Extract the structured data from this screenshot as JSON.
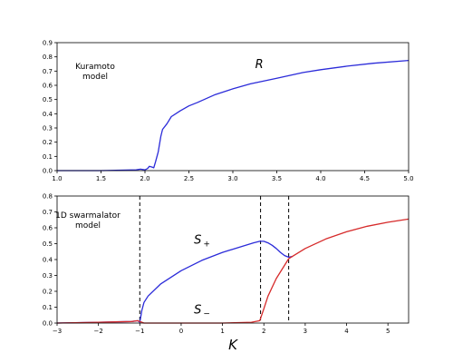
{
  "chart_data": [
    {
      "type": "line",
      "panel_label": [
        "Kuramoto",
        "model"
      ],
      "xlim": [
        1.0,
        5.0
      ],
      "ylim": [
        0.0,
        0.9
      ],
      "xticks": [
        "1.0",
        "1.5",
        "2.0",
        "2.5",
        "3.0",
        "3.5",
        "4.0",
        "4.5",
        "5.0"
      ],
      "yticks": [
        "0.0",
        "0.1",
        "0.2",
        "0.3",
        "0.4",
        "0.5",
        "0.6",
        "0.7",
        "0.8",
        "0.9"
      ],
      "xlabel": "",
      "ylabel": "",
      "grid": false,
      "series": [
        {
          "name": "R",
          "color": "#2b2bd9",
          "x": [
            1.0,
            1.5,
            1.9,
            1.95,
            2.0,
            2.03,
            2.05,
            2.08,
            2.1,
            2.12,
            2.15,
            2.18,
            2.2,
            2.25,
            2.3,
            2.4,
            2.5,
            2.6,
            2.8,
            3.0,
            3.2,
            3.5,
            3.8,
            4.0,
            4.3,
            4.6,
            5.0
          ],
          "y": [
            0.0,
            0.0,
            0.005,
            0.01,
            0.005,
            0.015,
            0.03,
            0.025,
            0.02,
            0.06,
            0.13,
            0.24,
            0.29,
            0.33,
            0.38,
            0.42,
            0.455,
            0.48,
            0.535,
            0.575,
            0.61,
            0.65,
            0.69,
            0.71,
            0.735,
            0.755,
            0.775
          ]
        }
      ],
      "annotations": [
        {
          "text": "R",
          "x": 3.3,
          "y": 0.72
        }
      ]
    },
    {
      "type": "line",
      "panel_label": [
        "1D swarmalator",
        "model"
      ],
      "xlim": [
        -3,
        5.5
      ],
      "ylim": [
        0.0,
        0.8
      ],
      "xticks": [
        "−3",
        "−2",
        "−1",
        "0",
        "1",
        "2",
        "3",
        "4",
        "5"
      ],
      "yticks": [
        "0.0",
        "0.1",
        "0.2",
        "0.3",
        "0.4",
        "0.5",
        "0.6",
        "0.7",
        "0.8"
      ],
      "xlabel": "K",
      "ylabel": "",
      "grid": false,
      "vlines": [
        -1.0,
        1.92,
        2.6
      ],
      "series": [
        {
          "name": "S+",
          "color": "#2b2bd9",
          "x": [
            -3.0,
            -2.0,
            -1.2,
            -1.05,
            -1.0,
            -0.95,
            -0.9,
            -0.8,
            -0.5,
            0.0,
            0.5,
            1.0,
            1.5,
            1.75,
            1.9,
            2.0,
            2.1,
            2.2,
            2.3,
            2.4,
            2.5,
            2.6,
            2.7
          ],
          "y": [
            0.0,
            0.005,
            0.01,
            0.015,
            0.005,
            0.08,
            0.13,
            0.17,
            0.245,
            0.33,
            0.395,
            0.445,
            0.485,
            0.505,
            0.515,
            0.515,
            0.505,
            0.49,
            0.47,
            0.445,
            0.425,
            0.415,
            0.42
          ]
        },
        {
          "name": "S-",
          "color": "#d62a2a",
          "x": [
            -3.0,
            -2.0,
            -1.2,
            -1.05,
            -1.0,
            -0.95,
            -0.9,
            0.0,
            1.0,
            1.7,
            1.9,
            2.0,
            2.1,
            2.3,
            2.6,
            3.0,
            3.5,
            4.0,
            4.5,
            5.0,
            5.5
          ],
          "y": [
            0.0,
            0.005,
            0.01,
            0.015,
            0.01,
            0.005,
            0.0,
            0.0,
            0.0,
            0.005,
            0.015,
            0.09,
            0.17,
            0.28,
            0.405,
            0.47,
            0.53,
            0.575,
            0.61,
            0.635,
            0.655
          ]
        }
      ],
      "annotations": [
        {
          "text": "S",
          "sub": "+",
          "x": 0.4,
          "y": 0.5
        },
        {
          "text": "S",
          "sub": "−",
          "x": 0.4,
          "y": 0.06
        }
      ]
    }
  ]
}
